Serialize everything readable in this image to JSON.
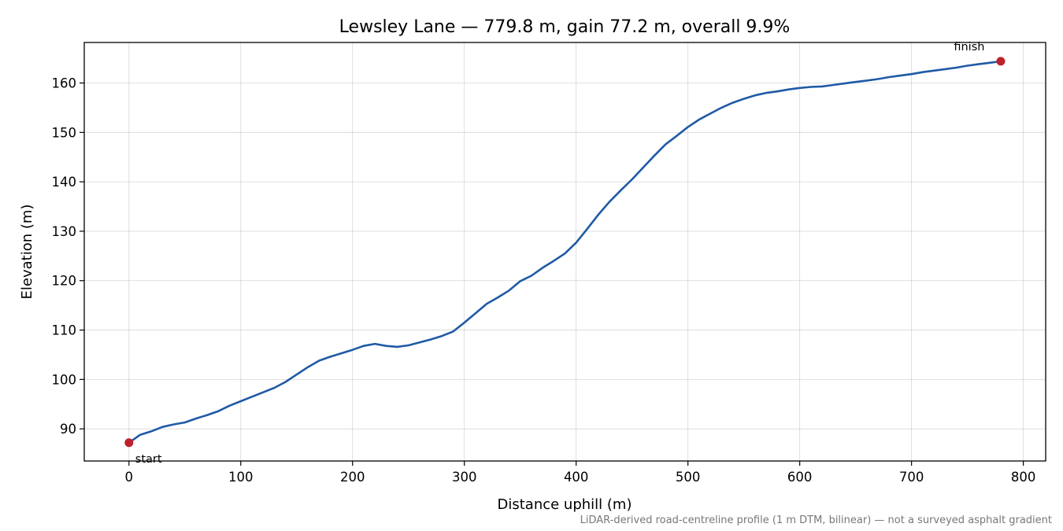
{
  "chart_data": {
    "type": "line",
    "title": "Lewsley Lane — 779.8 m, gain 77.2 m, overall 9.9%",
    "xlabel": "Distance uphill (m)",
    "ylabel": "Elevation (m)",
    "xlim": [
      -40,
      820
    ],
    "ylim": [
      83.5,
      168.2
    ],
    "xticks": [
      0,
      100,
      200,
      300,
      400,
      500,
      600,
      700,
      800
    ],
    "yticks": [
      90,
      100,
      110,
      120,
      130,
      140,
      150,
      160
    ],
    "grid": true,
    "colors": {
      "line": "#1f5aa6",
      "marker": "#c0202c"
    },
    "series": [
      {
        "x": [
          0,
          10,
          20,
          30,
          40,
          50,
          60,
          70,
          80,
          90,
          100,
          110,
          120,
          130,
          140,
          150,
          160,
          170,
          180,
          190,
          200,
          210,
          220,
          230,
          240,
          250,
          260,
          270,
          280,
          290,
          300,
          310,
          320,
          330,
          340,
          350,
          360,
          370,
          380,
          390,
          400,
          410,
          420,
          430,
          440,
          450,
          460,
          470,
          480,
          490,
          500,
          510,
          520,
          530,
          540,
          550,
          560,
          570,
          580,
          590,
          600,
          610,
          620,
          630,
          640,
          650,
          660,
          670,
          680,
          690,
          700,
          710,
          720,
          730,
          740,
          750,
          760,
          770,
          779.8
        ],
        "y": [
          87.2,
          88.8,
          89.5,
          90.4,
          90.9,
          91.3,
          92.1,
          92.8,
          93.6,
          94.7,
          95.6,
          96.5,
          97.4,
          98.3,
          99.5,
          101.0,
          102.5,
          103.8,
          104.6,
          105.3,
          106.0,
          106.8,
          107.2,
          106.8,
          106.6,
          106.9,
          107.5,
          108.1,
          108.8,
          109.7,
          111.5,
          113.4,
          115.3,
          116.6,
          118.0,
          119.9,
          121.0,
          122.6,
          124.0,
          125.5,
          127.7,
          130.5,
          133.4,
          136.0,
          138.3,
          140.5,
          142.9,
          145.3,
          147.6,
          149.3,
          151.1,
          152.6,
          153.8,
          155.0,
          156.0,
          156.8,
          157.5,
          158.0,
          158.3,
          158.7,
          159.0,
          159.2,
          159.3,
          159.6,
          159.9,
          160.2,
          160.5,
          160.8,
          161.2,
          161.5,
          161.8,
          162.2,
          162.5,
          162.8,
          163.1,
          163.5,
          163.8,
          164.1,
          164.4
        ]
      }
    ],
    "points": [
      {
        "label": "start",
        "x": 0,
        "y": 87.2
      },
      {
        "label": "finish",
        "x": 779.8,
        "y": 164.4
      }
    ],
    "footnote": "LiDAR-derived road-centreline profile (1 m DTM, bilinear) — not a surveyed asphalt gradient"
  }
}
